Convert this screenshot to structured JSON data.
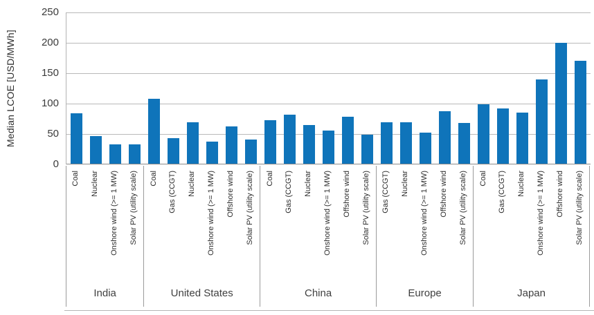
{
  "chart_data": {
    "type": "bar",
    "title": "",
    "xlabel": "",
    "ylabel": "Median LCOE [USD/MWh]",
    "ylim": [
      0,
      250
    ],
    "yticks": [
      0,
      50,
      100,
      150,
      200,
      250
    ],
    "grid": "horizontal",
    "legend": "none",
    "colors": {
      "bar": "#0f74ba",
      "gridline": "#b9b9b9",
      "axis_line": "#8a8a8a",
      "separator": "#9a9a9a",
      "text": "#3a3a3a"
    },
    "groups": [
      {
        "name": "India",
        "bars": [
          {
            "label": "Coal",
            "value": 84
          },
          {
            "label": "Nuclear",
            "value": 47
          },
          {
            "label": "Onshore wind (>= 1 MW)",
            "value": 33
          },
          {
            "label": "Solar PV (utility scale)",
            "value": 33
          }
        ]
      },
      {
        "name": "United States",
        "bars": [
          {
            "label": "Coal",
            "value": 108
          },
          {
            "label": "Gas (CCGT)",
            "value": 43
          },
          {
            "label": "Nuclear",
            "value": 69
          },
          {
            "label": "Onshore wind (>= 1 MW)",
            "value": 37
          },
          {
            "label": "Offshore wind",
            "value": 63
          },
          {
            "label": "Solar PV (utility scale)",
            "value": 41
          }
        ]
      },
      {
        "name": "China",
        "bars": [
          {
            "label": "Coal",
            "value": 73
          },
          {
            "label": "Gas (CCGT)",
            "value": 82
          },
          {
            "label": "Nuclear",
            "value": 65
          },
          {
            "label": "Onshore wind (>= 1 MW)",
            "value": 56
          },
          {
            "label": "Offshore wind",
            "value": 79
          },
          {
            "label": "Solar PV (utility scale)",
            "value": 49
          }
        ]
      },
      {
        "name": "Europe",
        "bars": [
          {
            "label": "Gas (CCGT)",
            "value": 69
          },
          {
            "label": "Nuclear",
            "value": 69
          },
          {
            "label": "Onshore wind (>= 1 MW)",
            "value": 52
          },
          {
            "label": "Offshore wind",
            "value": 88
          },
          {
            "label": "Solar PV (utility scale)",
            "value": 68
          }
        ]
      },
      {
        "name": "Japan",
        "bars": [
          {
            "label": "Coal",
            "value": 99
          },
          {
            "label": "Gas (CCGT)",
            "value": 92
          },
          {
            "label": "Nuclear",
            "value": 85
          },
          {
            "label": "Onshore wind (>= 1 MW)",
            "value": 140
          },
          {
            "label": "Offshore wind",
            "value": 200
          },
          {
            "label": "Solar PV (utility scale)",
            "value": 171
          }
        ]
      }
    ]
  }
}
